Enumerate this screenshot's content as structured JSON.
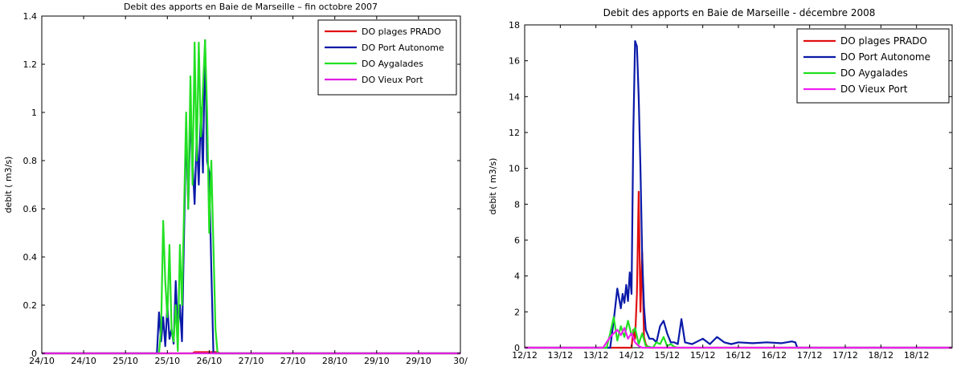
{
  "chart_data": [
    {
      "type": "line",
      "title": "Debit des apports en Baie de Marseille – fin octobre 2007",
      "xlabel": "",
      "ylabel": "debit ( m3/s)",
      "ylim": [
        0,
        1.4
      ],
      "yticks": [
        0,
        0.2,
        0.4,
        0.6,
        0.8,
        1,
        1.2,
        1.4
      ],
      "ytick_labels": [
        "0",
        "0.2",
        "0.4",
        "0.6",
        "0.8",
        "1",
        "1.2",
        "1.4"
      ],
      "xlim": [
        0,
        10
      ],
      "xticks": [
        0,
        1,
        2,
        3,
        4,
        5,
        6,
        7,
        8,
        9,
        10
      ],
      "xtick_labels": [
        "24/10",
        "24/10",
        "25/10",
        "25/10",
        "26/10",
        "27/10",
        "27/10",
        "28/10",
        "29/10",
        "29/10",
        "30/"
      ],
      "grid": false,
      "legend_position": "top-right",
      "series": [
        {
          "name": "DO plages PRADO",
          "color": "#e01010",
          "x": [
            0,
            3.6,
            3.65,
            4.2,
            4.25,
            10
          ],
          "y": [
            0,
            0,
            0.005,
            0.005,
            0,
            0
          ]
        },
        {
          "name": "DO Port Autonome",
          "color": "#0a1aa8",
          "x": [
            0,
            2.75,
            2.8,
            2.85,
            2.9,
            2.95,
            3.0,
            3.05,
            3.1,
            3.15,
            3.2,
            3.25,
            3.3,
            3.35,
            3.4,
            3.45,
            3.5,
            3.55,
            3.6,
            3.65,
            3.7,
            3.75,
            3.8,
            3.85,
            3.9,
            3.95,
            4.0,
            4.05,
            4.1,
            10
          ],
          "y": [
            0,
            0,
            0.17,
            0.05,
            0.15,
            0.03,
            0.2,
            0.06,
            0.1,
            0.04,
            0.3,
            0.1,
            0.2,
            0.05,
            0.5,
            0.95,
            0.6,
            0.98,
            0.8,
            0.62,
            0.9,
            0.7,
            1.02,
            0.75,
            1.3,
            0.8,
            0.75,
            0.35,
            0,
            0
          ]
        },
        {
          "name": "DO Aygalades",
          "color": "#22e022",
          "x": [
            0,
            2.8,
            2.85,
            2.9,
            2.95,
            3.0,
            3.05,
            3.1,
            3.15,
            3.2,
            3.25,
            3.3,
            3.35,
            3.4,
            3.45,
            3.5,
            3.55,
            3.6,
            3.65,
            3.7,
            3.75,
            3.8,
            3.85,
            3.9,
            3.95,
            4.0,
            4.05,
            4.1,
            4.15,
            4.2,
            10
          ],
          "y": [
            0,
            0,
            0.1,
            0.55,
            0.3,
            0.15,
            0.45,
            0.1,
            0.05,
            0.2,
            0.01,
            0.45,
            0.2,
            0.6,
            1.0,
            0.6,
            1.15,
            0.7,
            1.29,
            0.8,
            1.29,
            0.9,
            1.1,
            1.3,
            1.0,
            0.5,
            0.8,
            0.45,
            0.1,
            0,
            0
          ]
        },
        {
          "name": "DO Vieux Port",
          "color": "#e020e0",
          "x": [
            0,
            10
          ],
          "y": [
            0,
            0
          ]
        }
      ]
    },
    {
      "type": "line",
      "title": "Debit des apports en Baie de Marseille - décembre 2008",
      "xlabel": "",
      "ylabel": "debit ( m3/s)",
      "ylim": [
        0,
        18
      ],
      "yticks": [
        0,
        2,
        4,
        6,
        8,
        10,
        12,
        14,
        16,
        18
      ],
      "ytick_labels": [
        "0",
        "2",
        "4",
        "6",
        "8",
        "10",
        "12",
        "14",
        "16",
        "18"
      ],
      "xlim": [
        0,
        12
      ],
      "xticks": [
        0,
        1,
        2,
        3,
        4,
        5,
        6,
        7,
        8,
        9,
        10,
        11,
        12
      ],
      "xtick_labels": [
        "12/12",
        "13/12",
        "13/12",
        "14/12",
        "15/12",
        "15/12",
        "16/12",
        "16/12",
        "17/12",
        "17/12",
        "18/12",
        "18/12",
        ""
      ],
      "grid": false,
      "legend_position": "top-right",
      "series": [
        {
          "name": "DO plages PRADO",
          "color": "#e01010",
          "x": [
            0,
            3.0,
            3.05,
            3.1,
            3.15,
            3.2,
            3.25,
            3.3,
            3.35,
            3.4,
            3.45,
            3.5,
            12
          ],
          "y": [
            0,
            0,
            1.0,
            0.5,
            3.0,
            8.7,
            2.0,
            5.3,
            0.6,
            0.2,
            0.05,
            0,
            0
          ]
        },
        {
          "name": "DO Port Autonome",
          "color": "#0a1aa8",
          "x": [
            0,
            2.4,
            2.5,
            2.6,
            2.7,
            2.75,
            2.8,
            2.85,
            2.9,
            2.95,
            3.0,
            3.05,
            3.1,
            3.15,
            3.2,
            3.25,
            3.3,
            3.35,
            3.4,
            3.5,
            3.6,
            3.7,
            3.8,
            3.9,
            4.0,
            4.1,
            4.2,
            4.3,
            4.4,
            4.5,
            4.6,
            4.7,
            4.8,
            5.0,
            5.2,
            5.4,
            5.6,
            5.8,
            6.0,
            6.4,
            6.8,
            7.2,
            7.5,
            7.6,
            7.65,
            12
          ],
          "y": [
            0,
            0,
            1.5,
            3.3,
            2.2,
            3.0,
            2.5,
            3.5,
            2.6,
            4.2,
            3.0,
            12.0,
            17.1,
            16.8,
            14.0,
            10.0,
            5.0,
            2.3,
            1.0,
            0.5,
            0.5,
            0.3,
            1.2,
            1.5,
            0.8,
            0.3,
            0.3,
            0.2,
            1.6,
            0.3,
            0.25,
            0.2,
            0.3,
            0.5,
            0.2,
            0.6,
            0.3,
            0.2,
            0.3,
            0.25,
            0.3,
            0.25,
            0.35,
            0.3,
            0,
            0
          ]
        },
        {
          "name": "DO Aygalades",
          "color": "#22e022",
          "x": [
            0,
            2.3,
            2.4,
            2.5,
            2.6,
            2.7,
            2.8,
            2.9,
            3.0,
            3.1,
            3.2,
            3.3,
            3.4,
            3.6,
            3.7,
            3.8,
            3.9,
            4.0,
            4.1,
            4.2,
            4.3,
            12
          ],
          "y": [
            0,
            0,
            0.8,
            1.7,
            0.4,
            1.2,
            0.6,
            1.5,
            0.7,
            1.1,
            0.2,
            0.8,
            0.1,
            0,
            0.3,
            0.2,
            0.6,
            0.1,
            0.2,
            0.05,
            0,
            0
          ]
        },
        {
          "name": "DO Vieux Port",
          "color": "#f020f0",
          "x": [
            0,
            2.2,
            2.3,
            2.4,
            2.5,
            2.6,
            2.7,
            2.8,
            2.9,
            3.0,
            3.1,
            3.2,
            3.3,
            12
          ],
          "y": [
            0,
            0,
            0.3,
            0.6,
            0.8,
            1.0,
            0.7,
            1.1,
            0.5,
            0.8,
            0.3,
            0.1,
            0,
            0
          ]
        }
      ]
    }
  ]
}
